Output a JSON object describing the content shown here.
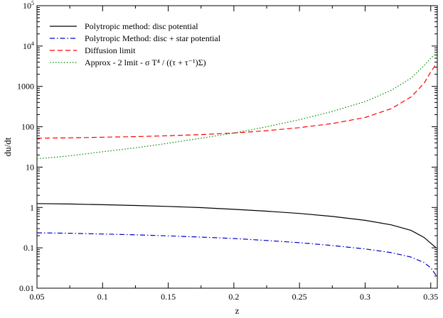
{
  "chart_data": {
    "type": "line",
    "xlabel": "z",
    "ylabel": "du/dt",
    "xlim": [
      0.05,
      0.355
    ],
    "ylim": [
      0.01,
      100000
    ],
    "y_scale": "log",
    "grid": false,
    "legend_placement": "top-left",
    "x_ticks": [
      {
        "value": 0.05,
        "label": "0.05"
      },
      {
        "value": 0.1,
        "label": "0.1"
      },
      {
        "value": 0.15,
        "label": "0.15"
      },
      {
        "value": 0.2,
        "label": "0.2"
      },
      {
        "value": 0.25,
        "label": "0.25"
      },
      {
        "value": 0.3,
        "label": "0.3"
      },
      {
        "value": 0.35,
        "label": "0.35"
      }
    ],
    "y_ticks": [
      {
        "value": 0.01,
        "label": "0.01"
      },
      {
        "value": 0.1,
        "label": "0.1"
      },
      {
        "value": 1,
        "label": "1"
      },
      {
        "value": 10,
        "label": "10"
      },
      {
        "value": 100,
        "label": "100"
      },
      {
        "value": 1000,
        "label": "1000"
      },
      {
        "value": 10000,
        "label": "10",
        "exponent": "4"
      },
      {
        "value": 100000,
        "label": "10",
        "exponent": "5"
      }
    ],
    "series": [
      {
        "name": "Polytropic method: disc potential",
        "color": "#000000",
        "dash": "solid",
        "x": [
          0.05,
          0.075,
          0.1,
          0.125,
          0.15,
          0.175,
          0.2,
          0.225,
          0.25,
          0.275,
          0.3,
          0.32,
          0.335,
          0.345,
          0.35,
          0.354
        ],
        "y": [
          1.25,
          1.22,
          1.17,
          1.12,
          1.06,
          0.99,
          0.9,
          0.81,
          0.71,
          0.6,
          0.48,
          0.37,
          0.27,
          0.18,
          0.13,
          0.1
        ]
      },
      {
        "name": "Polytropic Method: disc + star potential",
        "color": "#0000cc",
        "dash": "dashdot",
        "x": [
          0.05,
          0.075,
          0.1,
          0.125,
          0.15,
          0.175,
          0.2,
          0.225,
          0.25,
          0.275,
          0.3,
          0.32,
          0.335,
          0.345,
          0.35,
          0.354
        ],
        "y": [
          0.235,
          0.23,
          0.22,
          0.21,
          0.198,
          0.185,
          0.17,
          0.152,
          0.134,
          0.114,
          0.094,
          0.076,
          0.059,
          0.043,
          0.032,
          0.021
        ]
      },
      {
        "name": "Diffusion limit",
        "color": "#ff0000",
        "dash": "dashed",
        "x": [
          0.05,
          0.075,
          0.1,
          0.125,
          0.15,
          0.175,
          0.2,
          0.225,
          0.25,
          0.275,
          0.3,
          0.32,
          0.335,
          0.345,
          0.35,
          0.354
        ],
        "y": [
          52,
          53,
          55,
          57,
          60,
          64,
          70,
          80,
          95,
          120,
          170,
          280,
          550,
          1200,
          2300,
          3500
        ]
      },
      {
        "name": "Approx - 2 lmit - σ T⁴ / ((τ + τ⁻¹)Σ)",
        "color": "#008800",
        "dash": "dotted",
        "x": [
          0.05,
          0.075,
          0.1,
          0.125,
          0.15,
          0.175,
          0.2,
          0.225,
          0.25,
          0.275,
          0.3,
          0.32,
          0.335,
          0.345,
          0.35,
          0.354
        ],
        "y": [
          16,
          19,
          24,
          30,
          39,
          52,
          70,
          100,
          150,
          240,
          420,
          800,
          1600,
          3300,
          5000,
          6500
        ]
      }
    ]
  }
}
